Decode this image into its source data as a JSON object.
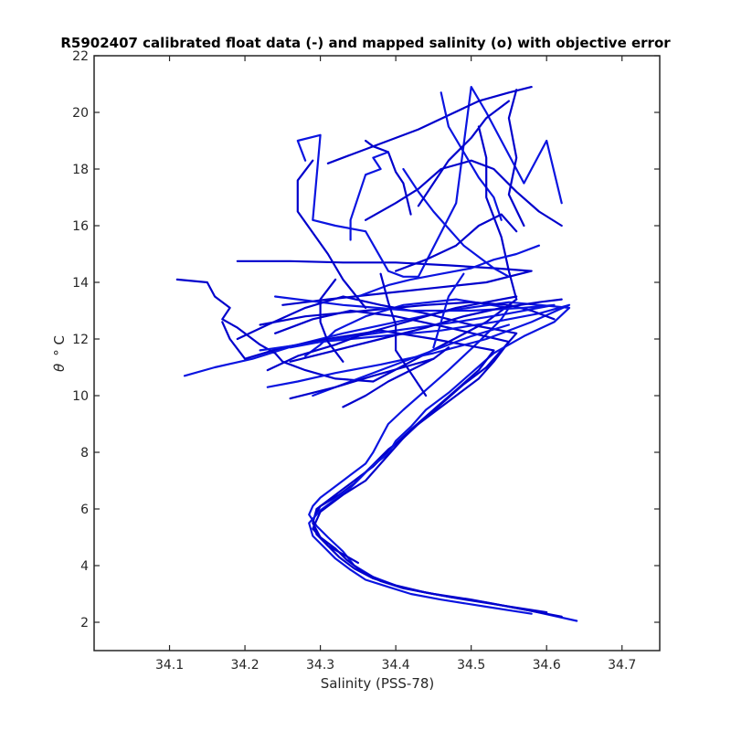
{
  "chart_data": {
    "type": "line",
    "title": "R5902407 calibrated float data (-) and mapped salinity (o) with objective error",
    "xlabel": "Salinity (PSS-78)",
    "ylabel_symbol": "θ",
    "ylabel_unit": "° C",
    "xlim": [
      34.0,
      34.75
    ],
    "ylim": [
      1.0,
      22.0
    ],
    "xticks": [
      "34.1",
      "34.2",
      "34.3",
      "34.4",
      "34.5",
      "34.6",
      "34.7"
    ],
    "yticks": [
      "2",
      "4",
      "6",
      "8",
      "10",
      "12",
      "14",
      "16",
      "18",
      "20",
      "22"
    ],
    "grid": false,
    "line_color": "#0000cc",
    "accent_color": "#0a14e0",
    "series": [
      {
        "x": [
          34.64,
          34.58,
          34.52,
          34.47,
          34.43,
          34.4,
          34.37,
          34.345,
          34.33,
          34.31,
          34.295,
          34.285,
          34.29,
          34.3,
          34.32,
          34.34,
          34.36,
          34.37,
          34.38,
          34.39,
          34.41,
          34.44,
          34.47,
          34.49,
          34.51,
          34.525,
          34.54,
          34.55,
          34.48,
          34.41,
          34.36,
          34.32,
          34.3,
          34.28
        ],
        "y": [
          2.05,
          2.4,
          2.7,
          2.9,
          3.1,
          3.3,
          3.6,
          4.0,
          4.5,
          5.0,
          5.4,
          5.8,
          6.1,
          6.4,
          6.8,
          7.2,
          7.6,
          8.0,
          8.5,
          9.0,
          9.5,
          10.2,
          10.9,
          11.4,
          11.9,
          12.3,
          12.7,
          13.1,
          13.4,
          13.2,
          12.8,
          12.3,
          11.8,
          11.4
        ]
      },
      {
        "x": [
          34.62,
          34.56,
          34.5,
          34.45,
          34.41,
          34.38,
          34.355,
          34.335,
          34.32,
          34.3,
          34.29,
          34.295,
          34.31,
          34.33,
          34.35,
          34.37,
          34.385,
          34.4,
          34.42,
          34.45,
          34.48,
          34.51,
          34.53,
          34.55,
          34.47,
          34.4,
          34.34,
          34.29,
          34.24
        ],
        "y": [
          2.2,
          2.5,
          2.8,
          3.0,
          3.2,
          3.45,
          3.8,
          4.2,
          4.6,
          5.0,
          5.5,
          6.0,
          6.3,
          6.7,
          7.1,
          7.5,
          7.9,
          8.3,
          8.8,
          9.4,
          10.0,
          10.6,
          11.2,
          11.9,
          12.4,
          12.8,
          13.0,
          12.7,
          12.2
        ]
      },
      {
        "x": [
          34.6,
          34.54,
          34.48,
          34.44,
          34.4,
          34.37,
          34.345,
          34.325,
          34.31,
          34.295,
          34.29,
          34.3,
          34.325,
          34.345,
          34.36,
          34.375,
          34.39,
          34.41,
          34.43,
          34.46,
          34.49,
          34.52,
          34.54,
          34.56,
          34.5,
          34.44,
          34.38,
          34.33,
          34.28,
          34.23,
          34.19
        ],
        "y": [
          2.35,
          2.6,
          2.85,
          3.05,
          3.3,
          3.55,
          3.9,
          4.3,
          4.7,
          5.1,
          5.6,
          6.1,
          6.5,
          6.9,
          7.3,
          7.7,
          8.1,
          8.5,
          9.0,
          9.7,
          10.4,
          11.0,
          11.6,
          12.2,
          12.5,
          12.9,
          13.2,
          13.5,
          13.1,
          12.5,
          12.0
        ]
      },
      {
        "x": [
          34.58,
          34.52,
          34.46,
          34.42,
          34.39,
          34.36,
          34.34,
          34.32,
          34.305,
          34.29,
          34.285,
          34.3,
          34.32,
          34.34,
          34.355,
          34.37,
          34.39,
          34.4,
          34.42,
          34.44,
          34.47,
          34.5,
          34.53,
          34.57,
          34.61,
          34.63,
          34.55,
          34.47,
          34.4,
          34.33,
          34.27,
          34.21,
          34.16,
          34.12
        ],
        "y": [
          2.3,
          2.55,
          2.8,
          3.0,
          3.25,
          3.5,
          3.85,
          4.25,
          4.65,
          5.05,
          5.5,
          5.95,
          6.35,
          6.75,
          7.15,
          7.55,
          7.95,
          8.4,
          8.9,
          9.5,
          10.1,
          10.8,
          11.5,
          12.1,
          12.6,
          13.1,
          13.3,
          13.0,
          12.6,
          12.2,
          11.8,
          11.3,
          11.0,
          10.7
        ]
      },
      {
        "x": [
          34.35,
          34.31,
          34.29,
          34.3,
          34.33,
          34.36,
          34.38,
          34.4,
          34.42,
          34.45,
          34.48,
          34.51,
          34.53,
          34.45,
          34.38,
          34.31,
          34.25,
          34.2,
          34.18,
          34.17
        ],
        "y": [
          4.1,
          4.7,
          5.3,
          5.9,
          6.5,
          7.0,
          7.6,
          8.2,
          8.8,
          9.5,
          10.2,
          10.9,
          11.6,
          12.0,
          12.3,
          12.0,
          11.7,
          11.3,
          12.0,
          12.6
        ]
      },
      {
        "x": [
          34.11,
          34.15,
          34.16,
          34.18,
          34.17,
          34.19,
          34.21,
          34.22,
          34.24,
          34.25,
          34.28,
          34.32,
          34.37,
          34.42,
          34.47,
          34.52,
          34.56
        ],
        "y": [
          14.1,
          14.0,
          13.5,
          13.1,
          12.7,
          12.4,
          12.0,
          11.8,
          11.5,
          11.2,
          10.9,
          10.6,
          10.5,
          11.2,
          11.9,
          12.6,
          13.4
        ]
      },
      {
        "x": [
          34.22,
          34.3,
          34.38,
          34.46,
          34.53,
          34.59,
          34.63,
          34.58,
          34.52,
          34.45,
          34.38,
          34.32,
          34.27,
          34.23
        ],
        "y": [
          11.6,
          11.9,
          12.1,
          12.3,
          12.6,
          12.9,
          13.2,
          12.6,
          12.0,
          11.5,
          11.1,
          10.8,
          10.5,
          10.3
        ]
      },
      {
        "x": [
          34.19,
          34.26,
          34.33,
          34.4,
          34.47,
          34.53,
          34.58,
          34.52,
          34.45,
          34.38,
          34.31,
          34.25
        ],
        "y": [
          14.75,
          14.75,
          14.7,
          14.7,
          14.6,
          14.5,
          14.4,
          14.0,
          13.8,
          13.6,
          13.4,
          13.2
        ]
      },
      {
        "x": [
          34.22,
          34.28,
          34.36,
          34.44,
          34.5,
          34.55,
          34.58,
          34.61
        ],
        "y": [
          12.5,
          12.8,
          13.0,
          13.2,
          13.3,
          13.2,
          13.0,
          12.7
        ]
      },
      {
        "x": [
          34.24,
          34.33,
          34.42,
          34.5,
          34.57,
          34.61,
          34.55,
          34.48,
          34.4,
          34.32,
          34.26
        ],
        "y": [
          13.5,
          13.2,
          13.0,
          13.0,
          13.1,
          13.2,
          12.9,
          12.6,
          12.3,
          12.0,
          11.7
        ]
      },
      {
        "x": [
          34.26,
          34.32,
          34.38,
          34.44,
          34.49,
          34.54,
          34.59,
          34.62
        ],
        "y": [
          11.2,
          11.6,
          12.0,
          12.4,
          12.8,
          13.1,
          13.3,
          13.4
        ]
      },
      {
        "x": [
          34.23,
          34.27,
          34.32,
          34.36,
          34.4,
          34.44,
          34.48,
          34.52,
          34.56
        ],
        "y": [
          10.9,
          11.4,
          11.8,
          12.2,
          12.5,
          12.8,
          13.1,
          13.3,
          13.5
        ]
      },
      {
        "x": [
          34.29,
          34.35,
          34.4,
          34.45,
          34.5,
          34.55
        ],
        "y": [
          10.0,
          10.6,
          11.1,
          11.6,
          12.1,
          12.5
        ]
      },
      {
        "x": [
          34.33,
          34.36,
          34.39,
          34.42,
          34.45,
          34.47
        ],
        "y": [
          9.6,
          10.0,
          10.5,
          10.9,
          11.3,
          11.7
        ]
      },
      {
        "x": [
          34.26,
          34.32,
          34.37,
          34.41,
          34.45
        ],
        "y": [
          9.9,
          10.3,
          10.7,
          11.0,
          11.3
        ]
      },
      {
        "x": [
          34.28,
          34.27,
          34.3,
          34.29,
          34.32,
          34.36,
          34.39,
          34.41,
          34.43,
          34.48,
          34.5,
          34.52,
          34.57,
          34.6,
          34.62
        ],
        "y": [
          18.3,
          19.0,
          19.2,
          16.2,
          16.0,
          15.8,
          14.4,
          14.2,
          14.2,
          16.8,
          20.9,
          20.0,
          17.5,
          19.0,
          16.8
        ]
      },
      {
        "x": [
          34.36,
          34.4,
          34.43,
          34.46,
          34.5,
          34.53,
          34.56,
          34.59,
          34.62
        ],
        "y": [
          16.2,
          16.8,
          17.3,
          18.0,
          18.3,
          18.0,
          17.2,
          16.5,
          16.0
        ]
      },
      {
        "x": [
          34.36,
          34.37,
          34.39,
          34.4,
          34.41,
          34.42
        ],
        "y": [
          19.0,
          18.8,
          18.6,
          17.9,
          17.5,
          16.4
        ]
      },
      {
        "x": [
          34.34,
          34.34,
          34.36,
          34.38,
          34.37,
          34.39
        ],
        "y": [
          15.5,
          16.2,
          17.8,
          18.0,
          18.4,
          18.6
        ]
      },
      {
        "x": [
          34.31,
          34.34,
          34.38,
          34.43,
          34.47,
          34.51,
          34.55,
          34.58
        ],
        "y": [
          18.2,
          18.5,
          18.9,
          19.4,
          19.9,
          20.4,
          20.7,
          20.9
        ]
      },
      {
        "x": [
          34.29,
          34.27,
          34.27,
          34.31,
          34.33,
          34.36
        ],
        "y": [
          18.3,
          17.6,
          16.5,
          15.0,
          14.1,
          13.1
        ]
      },
      {
        "x": [
          34.46,
          34.47,
          34.49,
          34.51,
          34.53,
          34.54
        ],
        "y": [
          20.7,
          19.5,
          18.6,
          17.7,
          17.0,
          16.2
        ]
      },
      {
        "x": [
          34.51,
          34.52,
          34.52,
          34.54,
          34.55,
          34.56
        ],
        "y": [
          19.5,
          18.4,
          17.0,
          15.6,
          14.4,
          13.4
        ]
      },
      {
        "x": [
          34.56,
          34.55,
          34.56,
          34.55,
          34.57
        ],
        "y": [
          20.8,
          19.8,
          18.4,
          17.1,
          16.0
        ]
      },
      {
        "x": [
          34.41,
          34.43,
          34.45,
          34.47,
          34.49,
          34.51,
          34.53,
          34.55
        ],
        "y": [
          18.0,
          17.2,
          16.5,
          15.9,
          15.3,
          14.9,
          14.5,
          14.2
        ]
      },
      {
        "x": [
          34.43,
          34.45,
          34.47,
          34.5,
          34.52,
          34.55
        ],
        "y": [
          16.7,
          17.5,
          18.3,
          19.1,
          19.8,
          20.4
        ]
      },
      {
        "x": [
          34.4,
          34.44,
          34.48,
          34.51,
          34.54,
          34.56
        ],
        "y": [
          14.4,
          14.8,
          15.3,
          16.0,
          16.4,
          15.8
        ]
      },
      {
        "x": [
          34.35,
          34.39,
          34.42,
          34.46,
          34.5,
          34.53,
          34.56,
          34.59
        ],
        "y": [
          13.5,
          13.9,
          14.1,
          14.3,
          14.5,
          14.8,
          15.0,
          15.3
        ]
      },
      {
        "x": [
          34.32,
          34.3,
          34.3,
          34.31,
          34.33
        ],
        "y": [
          14.1,
          13.4,
          12.6,
          11.9,
          11.2
        ]
      },
      {
        "x": [
          34.38,
          34.39,
          34.4,
          34.4,
          34.42,
          34.44
        ],
        "y": [
          14.3,
          13.3,
          12.5,
          11.6,
          10.8,
          10.0
        ]
      },
      {
        "x": [
          34.49,
          34.47,
          34.46,
          34.45
        ],
        "y": [
          14.3,
          13.5,
          12.6,
          11.7
        ]
      }
    ]
  }
}
